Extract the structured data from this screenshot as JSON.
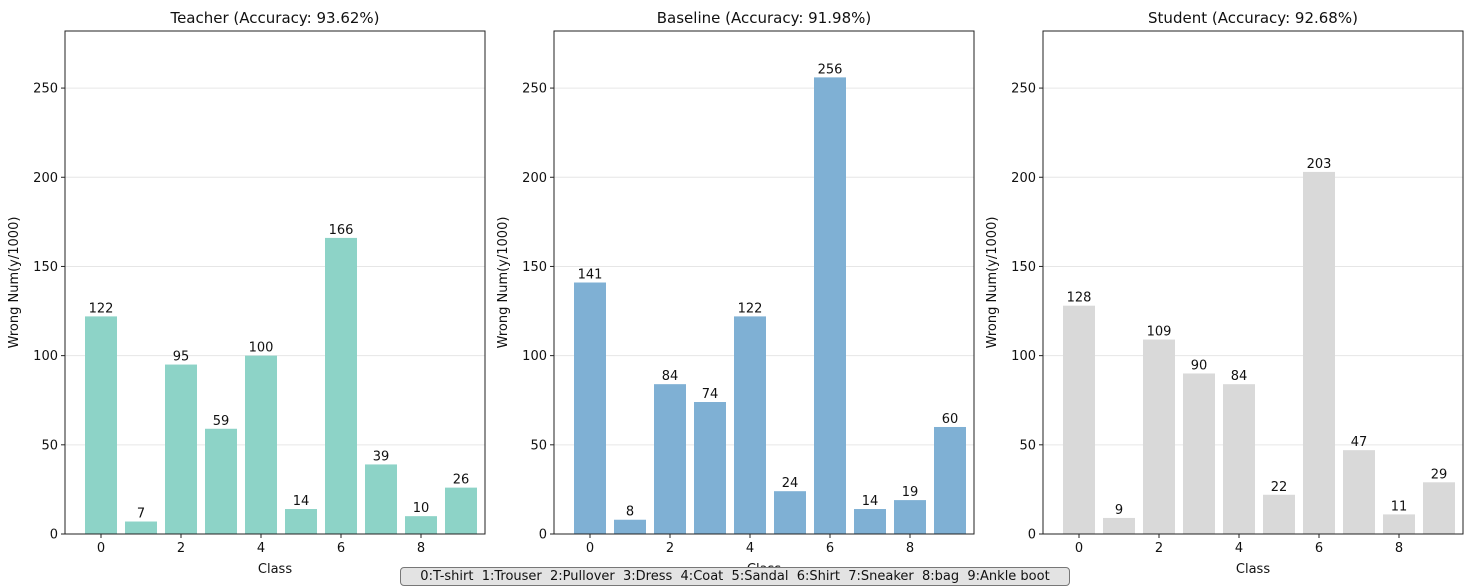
{
  "chart_data": [
    {
      "type": "bar",
      "title": "Teacher (Accuracy: 93.62%)",
      "xlabel": "Class",
      "ylabel": "Wrong Num(y/1000)",
      "categories": [
        0,
        1,
        2,
        3,
        4,
        5,
        6,
        7,
        8,
        9
      ],
      "values": [
        122,
        7,
        95,
        59,
        100,
        14,
        166,
        39,
        10,
        26
      ],
      "xticks": [
        "0",
        "2",
        "4",
        "6",
        "8"
      ],
      "yticks": [
        "0",
        "50",
        "100",
        "150",
        "200",
        "250"
      ],
      "ylim": [
        0,
        282
      ],
      "xlim": [
        -0.9,
        9.6
      ],
      "color": "#8dd3c7",
      "grid": "y"
    },
    {
      "type": "bar",
      "title": "Baseline (Accuracy: 91.98%)",
      "xlabel": "Class",
      "ylabel": "Wrong Num(y/1000)",
      "categories": [
        0,
        1,
        2,
        3,
        4,
        5,
        6,
        7,
        8,
        9
      ],
      "values": [
        141,
        8,
        84,
        74,
        122,
        24,
        256,
        14,
        19,
        60
      ],
      "xticks": [
        "0",
        "2",
        "4",
        "6",
        "8"
      ],
      "yticks": [
        "0",
        "50",
        "100",
        "150",
        "200",
        "250"
      ],
      "ylim": [
        0,
        282
      ],
      "xlim": [
        -0.9,
        9.6
      ],
      "color": "#7fb0d4",
      "grid": "y"
    },
    {
      "type": "bar",
      "title": "Student (Accuracy: 92.68%)",
      "xlabel": "Class",
      "ylabel": "Wrong Num(y/1000)",
      "categories": [
        0,
        1,
        2,
        3,
        4,
        5,
        6,
        7,
        8,
        9
      ],
      "values": [
        128,
        9,
        109,
        90,
        84,
        22,
        203,
        47,
        11,
        29
      ],
      "xticks": [
        "0",
        "2",
        "4",
        "6",
        "8"
      ],
      "yticks": [
        "0",
        "50",
        "100",
        "150",
        "200",
        "250"
      ],
      "ylim": [
        0,
        282
      ],
      "xlim": [
        -0.9,
        9.6
      ],
      "color": "#d9d9d9",
      "grid": "y"
    }
  ],
  "legend": {
    "text": "0:T-shirt  1:Trouser  2:Pullover  3:Dress  4:Coat  5:Sandal  6:Shirt  7:Sneaker  8:bag  9:Ankle boot",
    "placement": "bottom-center"
  }
}
